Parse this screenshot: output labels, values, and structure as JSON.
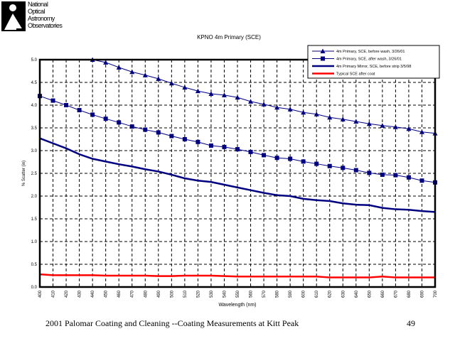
{
  "logo": {
    "lines": [
      "National",
      "Optical",
      "Astronomy",
      "Observatories"
    ]
  },
  "footer": {
    "caption": "2001 Palomar Coating and Cleaning --Coating Measurements at Kitt Peak",
    "page_number": "49"
  },
  "chart_data": {
    "type": "line",
    "title": "KPNO 4m Primary (SCE)",
    "xlabel": "Wavelength (nm)",
    "ylabel": "% Scatter (in)",
    "xlim": [
      400,
      700
    ],
    "ylim": [
      0,
      5.0
    ],
    "grid": true,
    "legend": "top-right",
    "x": [
      400,
      410,
      420,
      430,
      440,
      450,
      460,
      470,
      480,
      490,
      500,
      510,
      520,
      530,
      540,
      550,
      560,
      570,
      580,
      590,
      600,
      610,
      620,
      630,
      640,
      650,
      660,
      670,
      680,
      690,
      700
    ],
    "yticks": [
      "0.0",
      "0.5",
      "1.0",
      "1.5",
      "2.0",
      "2.5",
      "3.0",
      "3.5",
      "4.0",
      "4.5",
      "5.0"
    ],
    "series": [
      {
        "name": "4m Primary, SCE, before wash, 3/26/01",
        "color": "#000080",
        "marker": "triangle",
        "values": [
          null,
          null,
          null,
          null,
          5.0,
          4.94,
          4.83,
          4.73,
          4.66,
          4.58,
          4.48,
          4.39,
          4.31,
          4.25,
          4.22,
          4.17,
          4.08,
          4.02,
          3.95,
          3.91,
          3.84,
          3.8,
          3.73,
          3.69,
          3.64,
          3.59,
          3.55,
          3.52,
          3.48,
          3.41,
          3.38
        ]
      },
      {
        "name": "4m Primary, SCE, after wash, 3/26/01",
        "color": "#000080",
        "marker": "square",
        "values": [
          4.2,
          4.1,
          4.0,
          3.89,
          3.79,
          3.7,
          3.62,
          3.53,
          3.46,
          3.4,
          3.32,
          3.25,
          3.19,
          3.11,
          3.08,
          3.03,
          2.97,
          2.9,
          2.84,
          2.82,
          2.76,
          2.71,
          2.66,
          2.62,
          2.57,
          2.51,
          2.47,
          2.46,
          2.41,
          2.34,
          2.3
        ]
      },
      {
        "name": "4m Primary Mirror, SCE, before strip 3/5/98",
        "color": "#000080",
        "marker": "none",
        "values": [
          3.27,
          3.16,
          3.05,
          2.92,
          2.82,
          2.76,
          2.7,
          2.65,
          2.59,
          2.54,
          2.47,
          2.39,
          2.34,
          2.31,
          2.25,
          2.19,
          2.13,
          2.07,
          2.02,
          2.0,
          1.94,
          1.91,
          1.89,
          1.84,
          1.81,
          1.8,
          1.74,
          1.71,
          1.7,
          1.67,
          1.65
        ]
      },
      {
        "name": "Typical SCE after coat",
        "color": "#ff0000",
        "marker": "none",
        "values": [
          0.28,
          0.26,
          0.26,
          0.26,
          0.26,
          0.25,
          0.25,
          0.25,
          0.25,
          0.24,
          0.24,
          0.25,
          0.25,
          0.25,
          0.24,
          0.23,
          0.23,
          0.23,
          0.23,
          0.23,
          0.23,
          0.23,
          0.21,
          0.21,
          0.21,
          0.21,
          0.23,
          0.21,
          0.21,
          0.21,
          0.21
        ]
      }
    ]
  }
}
